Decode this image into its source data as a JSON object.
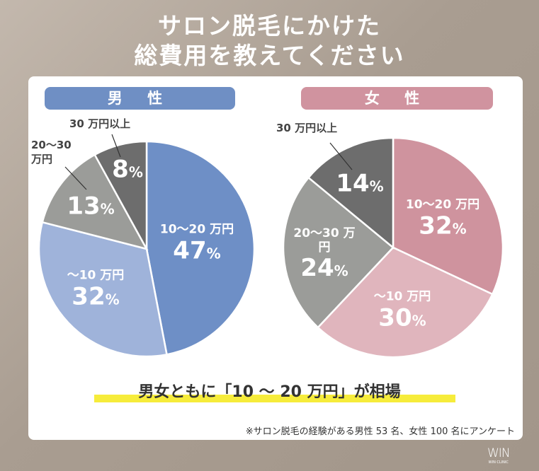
{
  "title": {
    "line1": "サロン脱毛にかけた",
    "line2": "総費用を教えてください"
  },
  "headline": "男女ともに「10 〜 20 万円」が相場",
  "footnote": "※サロン脱毛の経験がある男性 53 名、女性 100 名にアンケート",
  "logo": {
    "mark": "WIN",
    "sub": "WIN CLINIC"
  },
  "chart_data": [
    {
      "type": "pie",
      "title": "男 性",
      "header_color": "#6f8fc4",
      "categories": [
        "10〜20 万円",
        "〜10 万円",
        "20〜30 万円",
        "30 万円以上"
      ],
      "values": [
        47,
        32,
        13,
        8
      ],
      "colors": [
        "#6e8fc6",
        "#9fb3da",
        "#9b9c99",
        "#6d6d6d"
      ],
      "labels": [
        "47%",
        "32%",
        "13%",
        "8%"
      ]
    },
    {
      "type": "pie",
      "title": "女 性",
      "header_color": "#d0939f",
      "categories": [
        "10〜20 万円",
        "〜10 万円",
        "20〜30 万円",
        "30 万円以上"
      ],
      "values": [
        32,
        30,
        24,
        14
      ],
      "colors": [
        "#cf939e",
        "#e0b5bd",
        "#9b9c99",
        "#6d6d6d"
      ],
      "labels": [
        "32%",
        "30%",
        "24%",
        "14%"
      ]
    }
  ]
}
